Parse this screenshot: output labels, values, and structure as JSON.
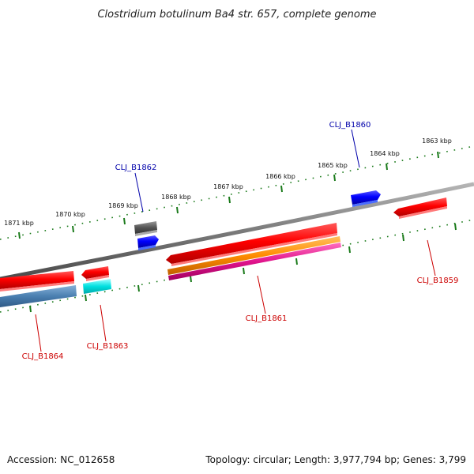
{
  "title": "Clostridium botulinum Ba4 str. 657, complete genome",
  "footer": {
    "accession": "Accession: NC_012658",
    "stats": "Topology: circular; Length: 3,977,794 bp; Genes: 3,799"
  },
  "kbp_labels": [
    "1871 kbp",
    "1870 kbp",
    "1869 kbp",
    "1868 kbp",
    "1867 kbp",
    "1866 kbp",
    "1865 kbp",
    "1864 kbp",
    "1863 kbp"
  ],
  "genes": [
    {
      "id": "CLJ_B1860",
      "strand": "forward",
      "color": "#0000ff"
    },
    {
      "id": "CLJ_B1862",
      "strand": "forward",
      "color": "#0000ff"
    },
    {
      "id": "CLJ_B1859",
      "strand": "reverse",
      "color": "#ff0000"
    },
    {
      "id": "CLJ_B1861",
      "strand": "reverse",
      "color": "#ff0000"
    },
    {
      "id": "CLJ_B1863",
      "strand": "reverse",
      "color": "#ff0000"
    },
    {
      "id": "CLJ_B1864",
      "strand": "reverse",
      "color": "#ff0000"
    }
  ],
  "colors": {
    "backbone": "#7a7a7a",
    "ticks": "#1a7a1a",
    "gray_feature": "#555555",
    "orange_feature": "#ff8c00",
    "magenta_feature": "#e0148c",
    "cyan_feature": "#00e0e0",
    "steelblue_feature": "#4a7fb0"
  }
}
